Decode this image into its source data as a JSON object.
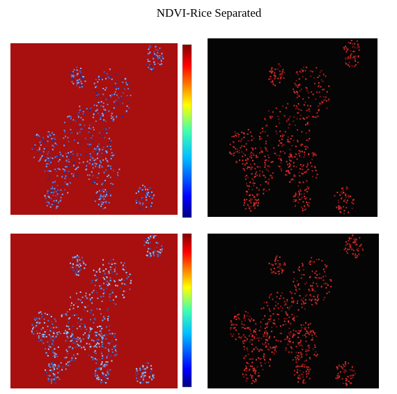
{
  "title": "NDVI-Rice Separated"
}
